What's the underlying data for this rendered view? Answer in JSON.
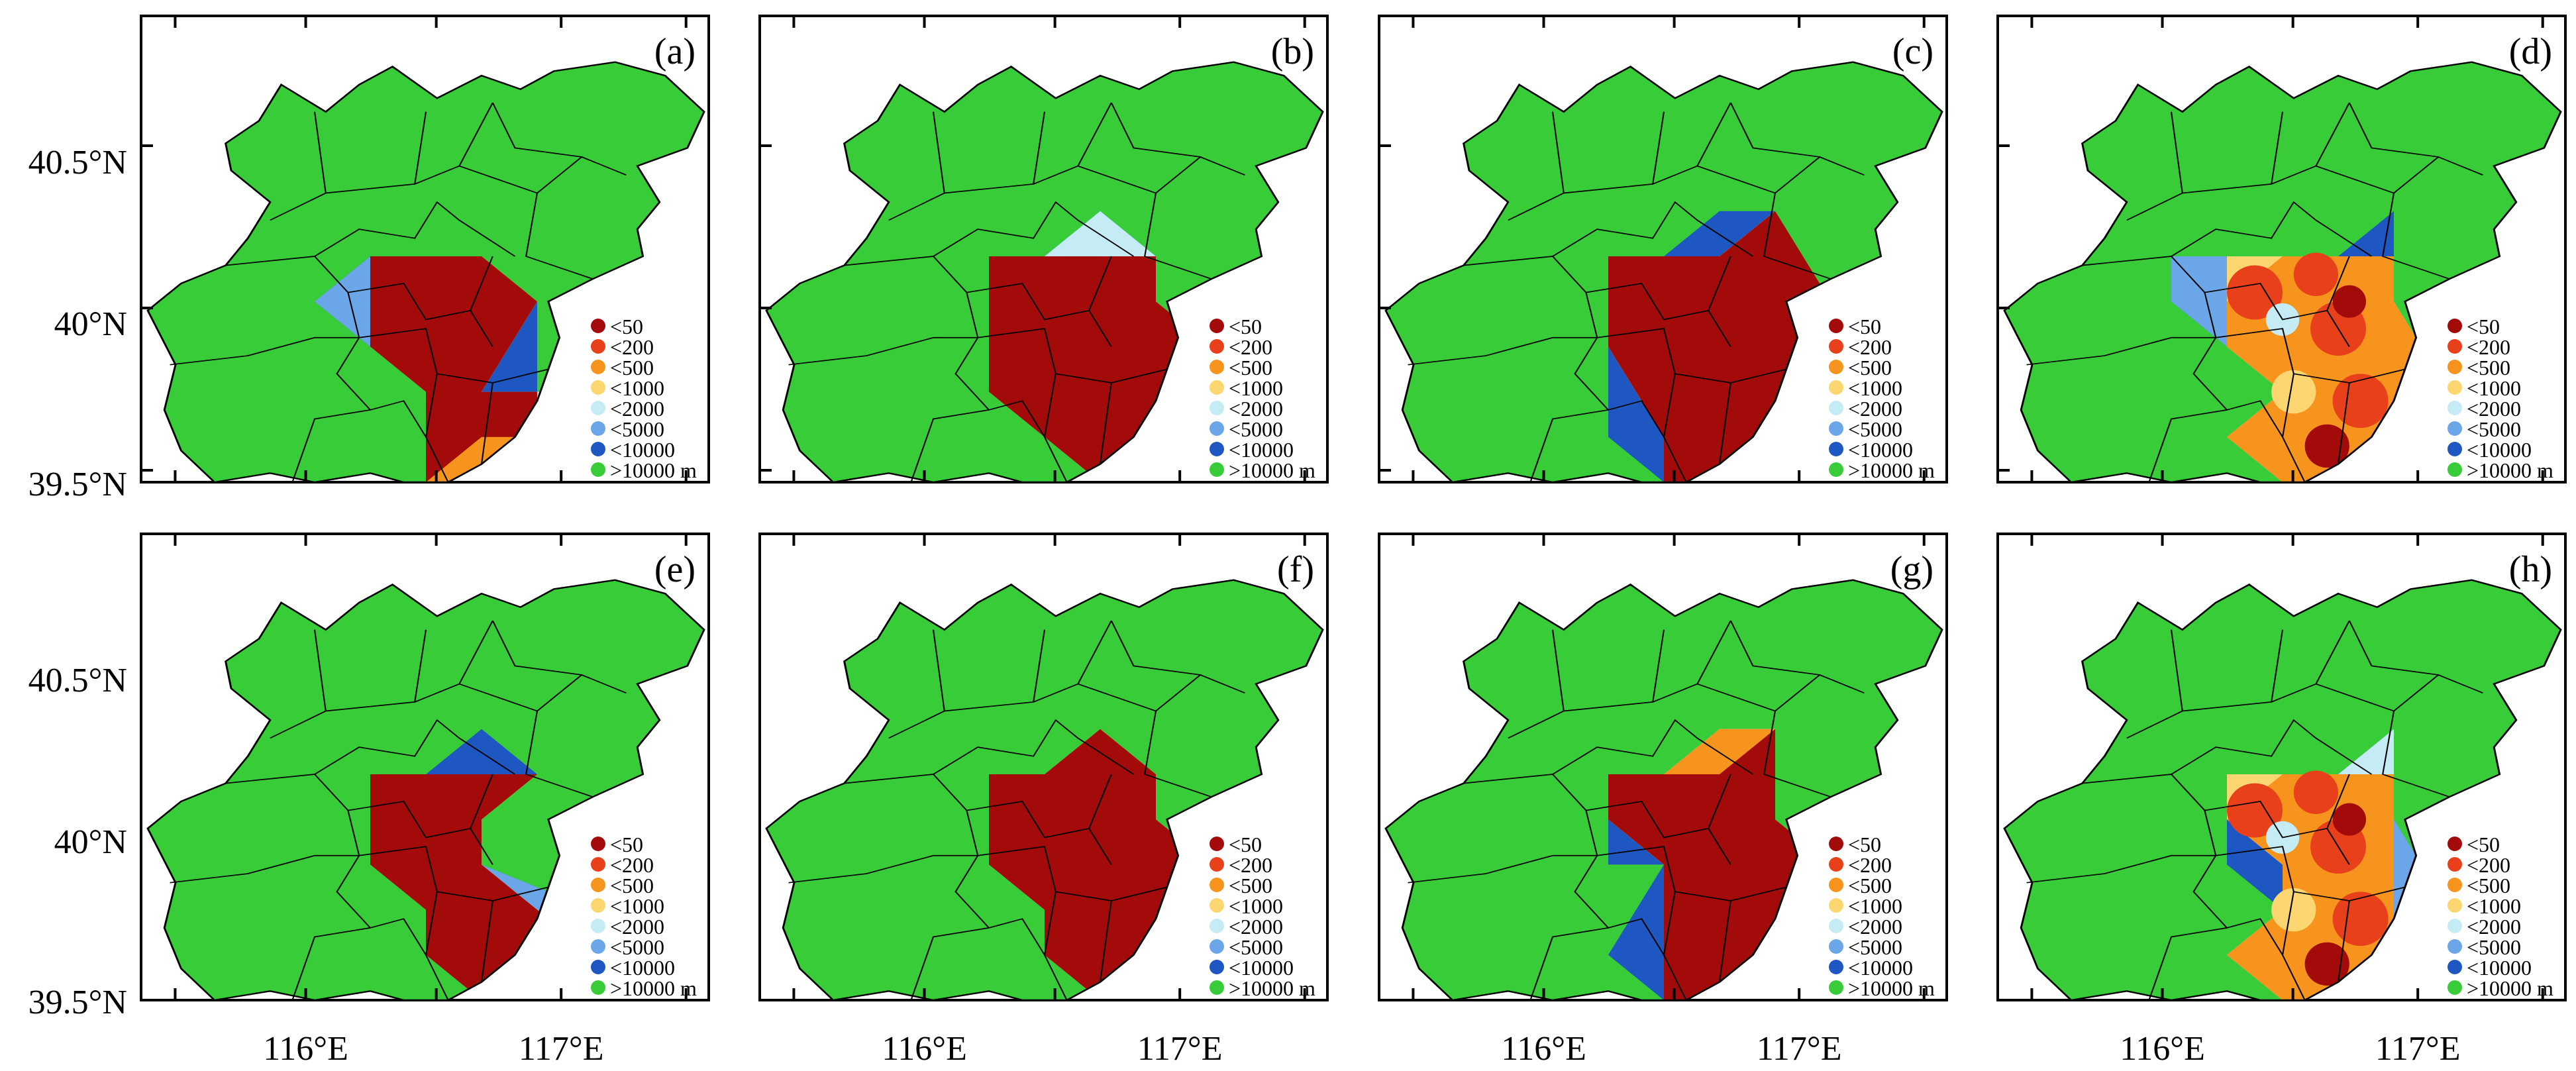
{
  "figure": {
    "panels": [
      {
        "label": "(a)",
        "pattern": "a"
      },
      {
        "label": "(b)",
        "pattern": "b"
      },
      {
        "label": "(c)",
        "pattern": "c"
      },
      {
        "label": "(d)",
        "pattern": "d"
      },
      {
        "label": "(e)",
        "pattern": "e"
      },
      {
        "label": "(f)",
        "pattern": "f"
      },
      {
        "label": "(g)",
        "pattern": "g"
      },
      {
        "label": "(h)",
        "pattern": "h"
      }
    ],
    "legend": [
      {
        "label": "<50",
        "color": "#a30a0a"
      },
      {
        "label": "<200",
        "color": "#e8401b"
      },
      {
        "label": "<500",
        "color": "#f7941d"
      },
      {
        "label": "<1000",
        "color": "#fcd670"
      },
      {
        "label": "<2000",
        "color": "#c5ecf5"
      },
      {
        "label": "<5000",
        "color": "#6aa6e8"
      },
      {
        "label": "<10000",
        "color": "#1e57c2"
      },
      {
        "label": ">10000 m",
        "color": "#38cd38"
      }
    ],
    "lat_ticks": [
      "40.5°N",
      "40°N",
      "39.5°N"
    ],
    "lon_ticks": [
      "116°E",
      "117°E"
    ]
  }
}
